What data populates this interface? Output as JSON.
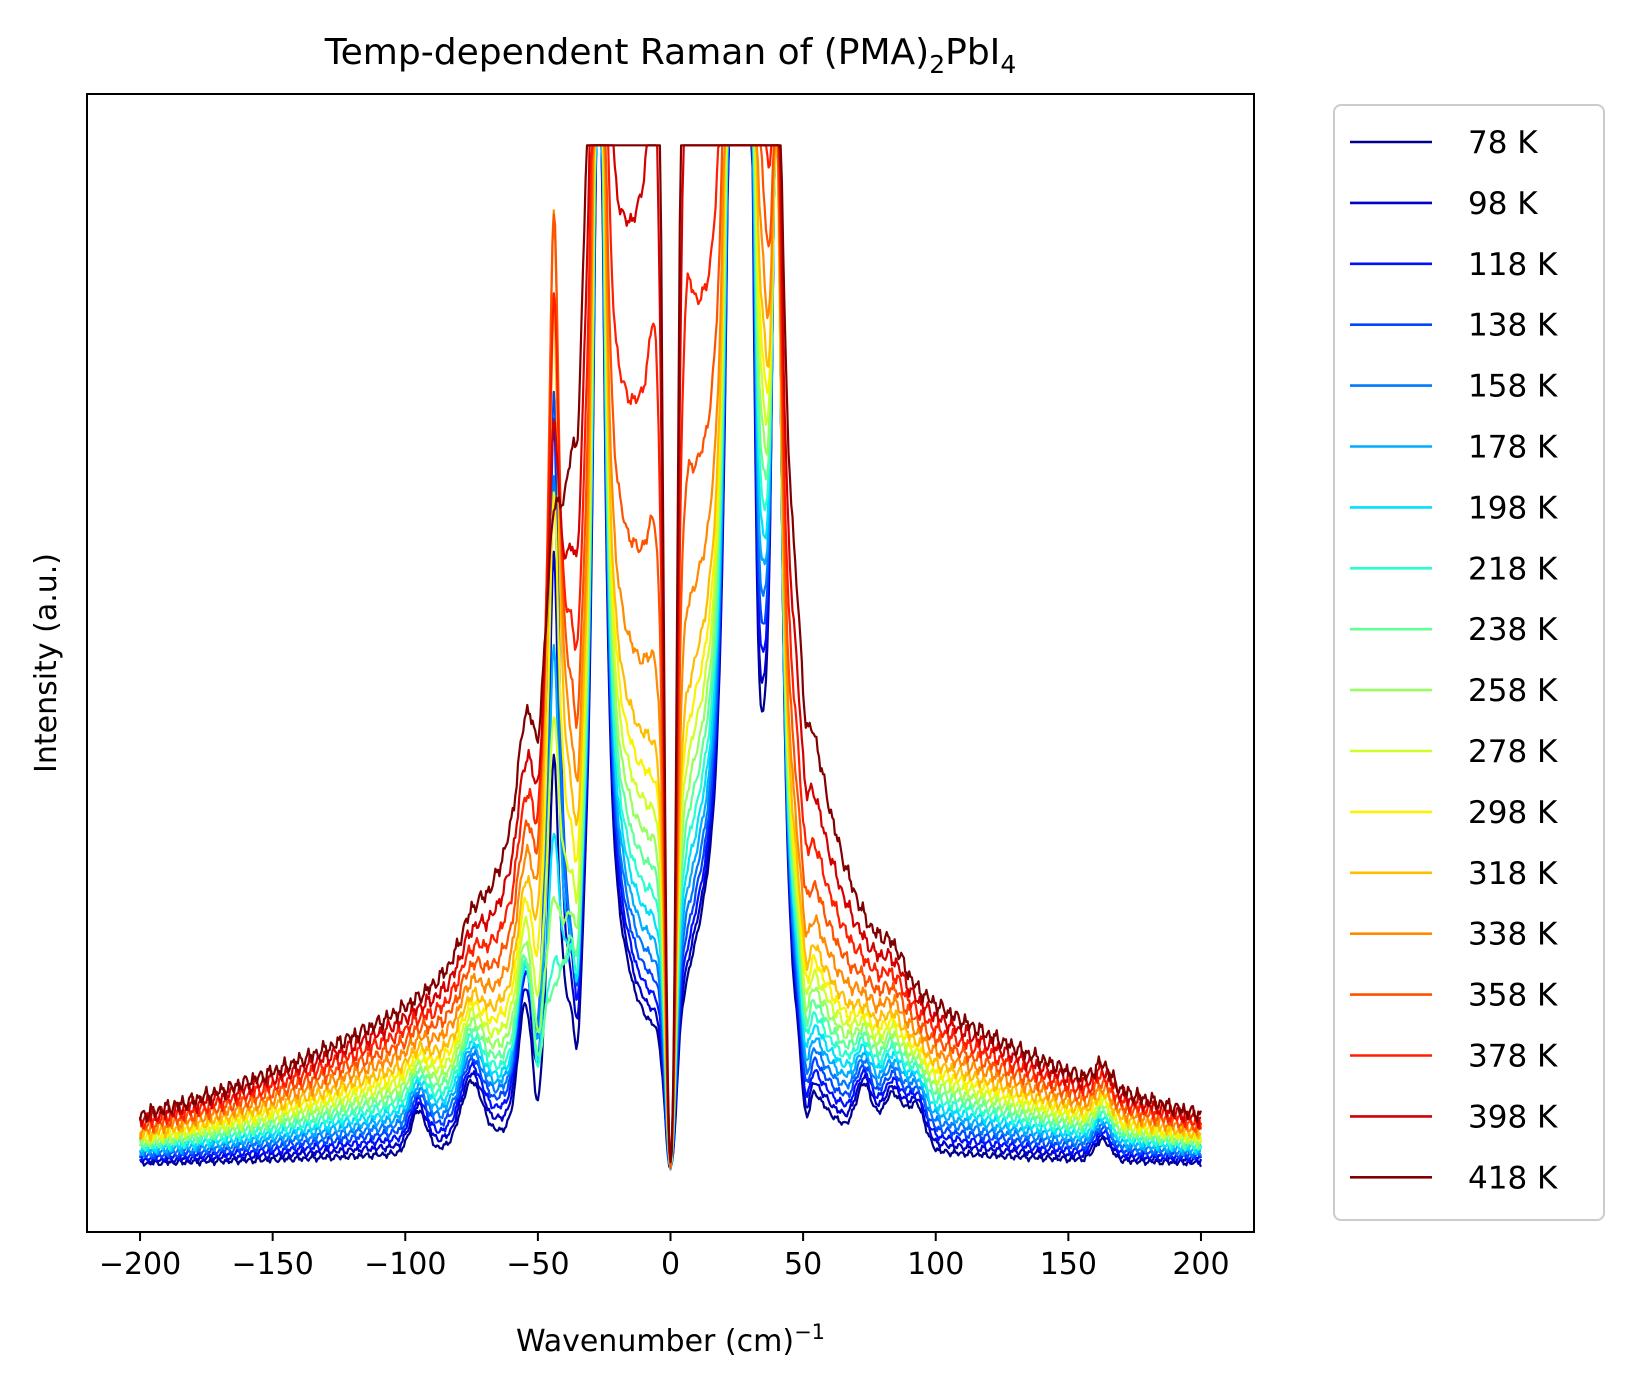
{
  "chart_data": {
    "type": "line",
    "title": "Temp-dependent Raman of (PMA)",
    "title_sub1": "2",
    "title_mid": "PbI",
    "title_sub2": "4",
    "xlabel": "Wavenumber (cm)",
    "xlabel_sup": "−1",
    "ylabel": "Intensity (a.u.)",
    "xlim": [
      -220,
      220
    ],
    "ylim": [
      -0.06,
      1.05
    ],
    "x_ticks": [
      -200,
      -150,
      -100,
      -50,
      0,
      50,
      100,
      150,
      200
    ],
    "x_tick_labels": [
      "−200",
      "−150",
      "−100",
      "−50",
      "0",
      "50",
      "100",
      "150",
      "200"
    ],
    "y_ticks_shown": false,
    "grid": false,
    "legend_position": "outside-right",
    "series": [
      {
        "name": "78 K",
        "color": "#00008f"
      },
      {
        "name": "98 K",
        "color": "#0000c8"
      },
      {
        "name": "118 K",
        "color": "#0010ff"
      },
      {
        "name": "138 K",
        "color": "#0046ff"
      },
      {
        "name": "158 K",
        "color": "#0078ff"
      },
      {
        "name": "178 K",
        "color": "#00acff"
      },
      {
        "name": "198 K",
        "color": "#00e0fb"
      },
      {
        "name": "218 K",
        "color": "#29ffce"
      },
      {
        "name": "238 K",
        "color": "#60ff97"
      },
      {
        "name": "258 K",
        "color": "#97ff60"
      },
      {
        "name": "278 K",
        "color": "#ceff29"
      },
      {
        "name": "298 K",
        "color": "#fbf100"
      },
      {
        "name": "318 K",
        "color": "#ffbd00"
      },
      {
        "name": "338 K",
        "color": "#ff8900"
      },
      {
        "name": "358 K",
        "color": "#ff5200"
      },
      {
        "name": "378 K",
        "color": "#ff1e00"
      },
      {
        "name": "398 K",
        "color": "#d40000"
      },
      {
        "name": "418 K",
        "color": "#800000"
      }
    ]
  }
}
